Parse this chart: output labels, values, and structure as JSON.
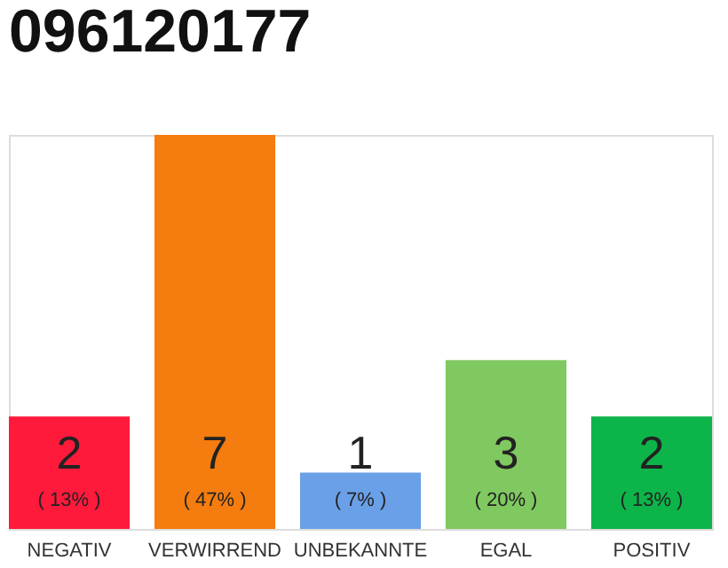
{
  "chart_data": {
    "type": "bar",
    "title": "096120177",
    "categories": [
      "NEGATIV",
      "VERWIRREND",
      "UNBEKANNTE",
      "EGAL",
      "POSITIV"
    ],
    "values": [
      2,
      7,
      1,
      3,
      2
    ],
    "colors": [
      "#ff1a3c",
      "#f57c0e",
      "#6aa0e8",
      "#80c860",
      "#0db44a"
    ],
    "value_labels": [
      "2",
      "7",
      "1",
      "3",
      "2"
    ],
    "annotations": [
      "( 13% )",
      "( 47% )",
      "( 7% )",
      "( 20% )",
      "( 13% )"
    ],
    "grid": false
  }
}
